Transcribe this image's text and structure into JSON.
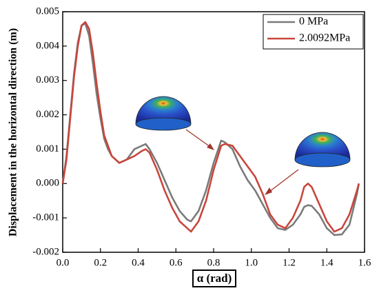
{
  "chart_data": {
    "type": "line",
    "x_label": "α (rad)",
    "y_label": "Displacement in the horizontal direction (m)",
    "x": [
      0,
      0.02,
      0.04,
      0.06,
      0.08,
      0.1,
      0.12,
      0.14,
      0.16,
      0.18,
      0.2,
      0.22,
      0.24,
      0.26,
      0.3,
      0.34,
      0.38,
      0.42,
      0.44,
      0.46,
      0.5,
      0.54,
      0.58,
      0.62,
      0.66,
      0.68,
      0.72,
      0.76,
      0.8,
      0.84,
      0.86,
      0.9,
      0.94,
      0.98,
      1.02,
      1.06,
      1.1,
      1.14,
      1.18,
      1.22,
      1.26,
      1.28,
      1.3,
      1.32,
      1.36,
      1.4,
      1.44,
      1.48,
      1.52,
      1.56,
      1.57
    ],
    "series": [
      {
        "name": "0 MPa",
        "color": "#7a7a7a",
        "values": [
          0,
          0.0008,
          0.002,
          0.0032,
          0.0041,
          0.0046,
          0.00466,
          0.0043,
          0.0035,
          0.0026,
          0.0019,
          0.0013,
          0.001,
          0.0008,
          0.0006,
          0.0007,
          0.001,
          0.0011,
          0.00115,
          0.001,
          0.0006,
          0.0001,
          -0.0004,
          -0.0008,
          -0.00105,
          -0.0011,
          -0.0008,
          -0.0002,
          0.0006,
          0.00125,
          0.0012,
          0.001,
          0.0005,
          0.0001,
          -0.0002,
          -0.0006,
          -0.001,
          -0.0013,
          -0.00135,
          -0.0012,
          -0.0009,
          -0.00068,
          -0.00063,
          -0.00065,
          -0.0009,
          -0.0013,
          -0.0015,
          -0.00148,
          -0.0012,
          -0.0003,
          0
        ]
      },
      {
        "name": "2.0092MPa",
        "color": "#c8463c",
        "values": [
          0,
          0.0007,
          0.0019,
          0.0031,
          0.004,
          0.0046,
          0.0047,
          0.0045,
          0.0038,
          0.0029,
          0.0021,
          0.0014,
          0.0011,
          0.0008,
          0.0006,
          0.0007,
          0.0008,
          0.00095,
          0.001,
          0.0009,
          0.0004,
          -0.0002,
          -0.0007,
          -0.0011,
          -0.0013,
          -0.0014,
          -0.0011,
          -0.0005,
          0.0004,
          0.0011,
          0.00115,
          0.0011,
          0.0008,
          0.0005,
          0.0002,
          -0.0003,
          -0.0009,
          -0.0012,
          -0.0013,
          -0.001,
          -0.0005,
          -0.0001,
          0,
          -0.0001,
          -0.0006,
          -0.0011,
          -0.0014,
          -0.0013,
          -0.0009,
          -0.0002,
          0
        ]
      }
    ],
    "xlim": [
      0,
      1.6
    ],
    "xticks": [
      {
        "value": 0,
        "label": "0.0"
      },
      0.2,
      0.4,
      0.6,
      0.8,
      {
        "value": 1,
        "label": "1.0"
      },
      1.2,
      1.4,
      1.6
    ],
    "ylim": [
      -0.002,
      0.005
    ],
    "yticks": [
      -0.002,
      -0.001,
      {
        "value": 0,
        "label": "0.000"
      },
      0.001,
      0.002,
      0.003,
      0.004,
      0.005
    ],
    "legend": "top-right"
  }
}
